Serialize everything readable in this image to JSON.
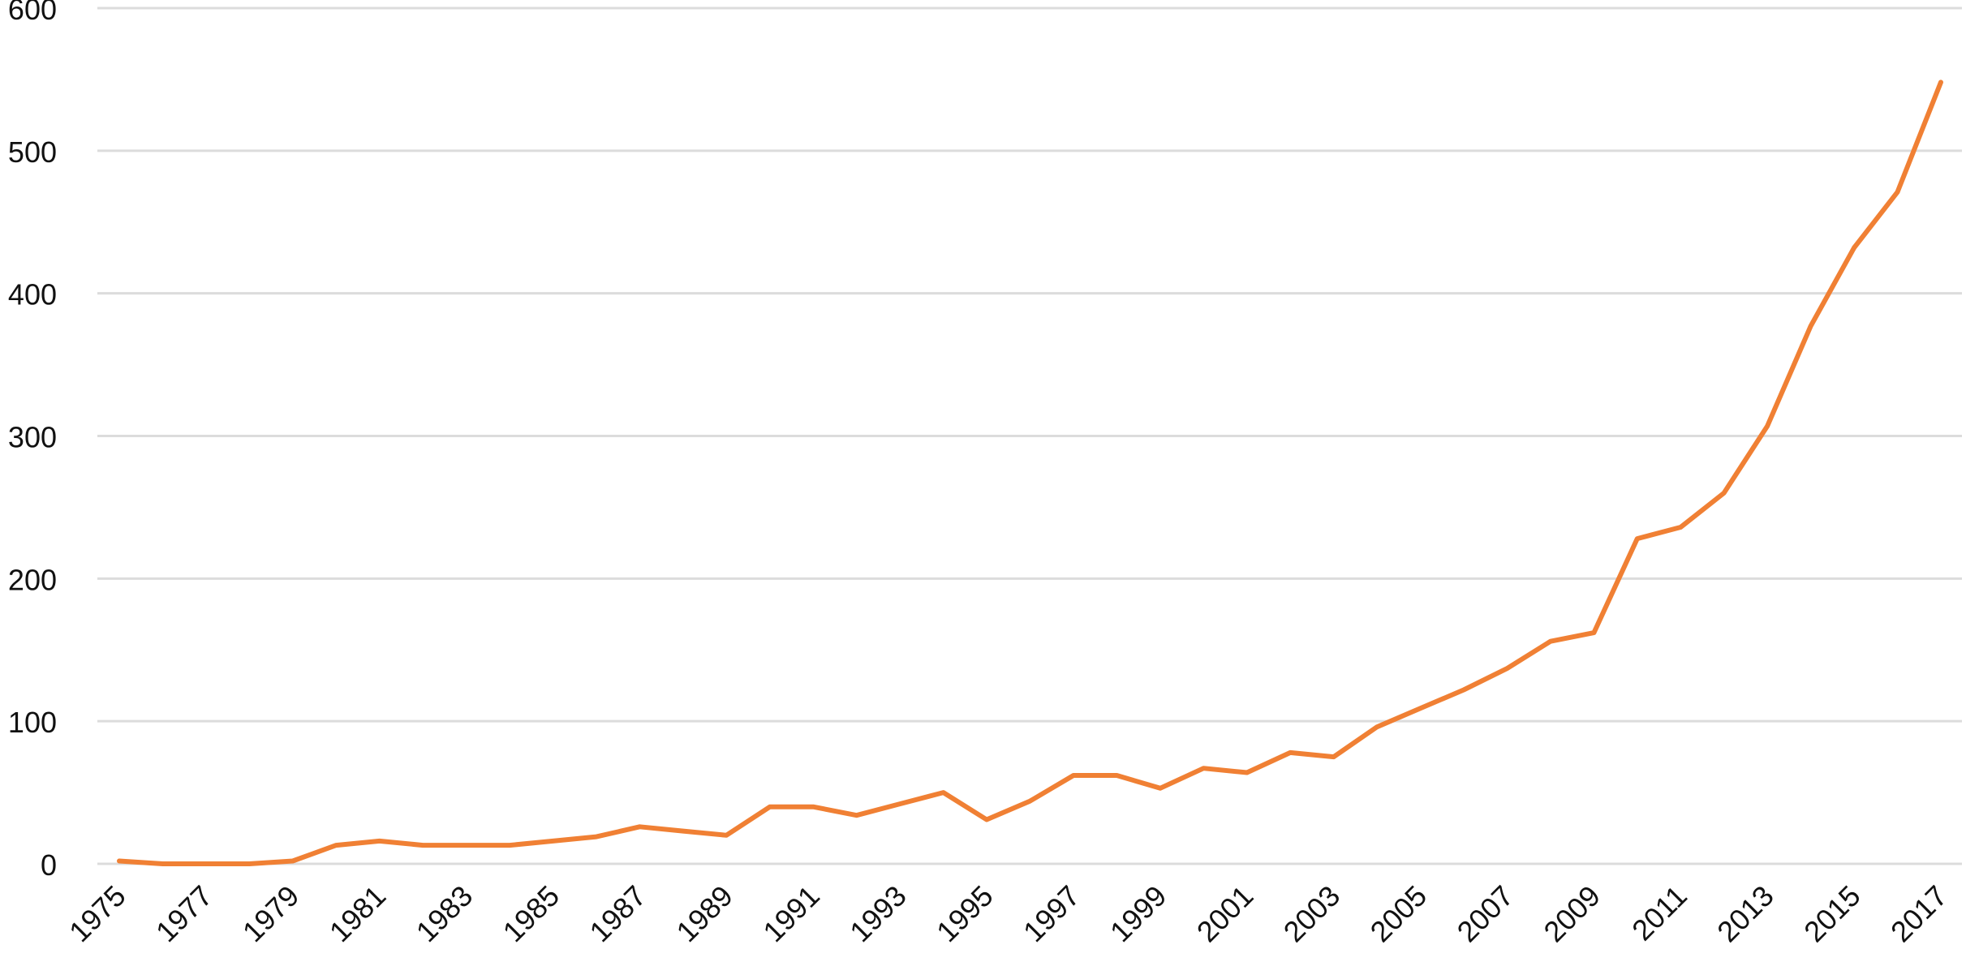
{
  "chart_data": {
    "type": "line",
    "x": [
      1975,
      1976,
      1977,
      1978,
      1979,
      1980,
      1981,
      1982,
      1983,
      1984,
      1985,
      1986,
      1987,
      1988,
      1989,
      1990,
      1991,
      1992,
      1993,
      1994,
      1995,
      1996,
      1997,
      1998,
      1999,
      2000,
      2001,
      2002,
      2003,
      2004,
      2005,
      2006,
      2007,
      2008,
      2009,
      2010,
      2011,
      2012,
      2013,
      2014,
      2015,
      2016,
      2017
    ],
    "values": [
      2,
      0,
      0,
      0,
      2,
      13,
      16,
      13,
      13,
      13,
      16,
      19,
      26,
      23,
      20,
      40,
      40,
      34,
      42,
      50,
      31,
      44,
      62,
      62,
      53,
      67,
      64,
      78,
      75,
      96,
      109,
      122,
      137,
      156,
      162,
      228,
      236,
      260,
      307,
      377,
      432,
      471,
      548
    ],
    "color": "#f08034",
    "xlim": [
      1975,
      2017
    ],
    "xticks": [
      1975,
      1977,
      1979,
      1981,
      1983,
      1985,
      1987,
      1989,
      1991,
      1993,
      1995,
      1997,
      1999,
      2001,
      2003,
      2005,
      2007,
      2009,
      2011,
      2013,
      2015,
      2017
    ],
    "ylim": [
      0,
      600
    ],
    "yticks": [
      0,
      100,
      200,
      300,
      400,
      500,
      600
    ],
    "grid": true
  }
}
